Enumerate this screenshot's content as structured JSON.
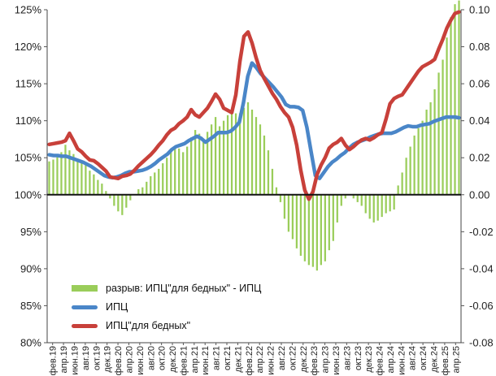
{
  "chart_data": {
    "type": "bar+line",
    "title": "",
    "left_axis": {
      "ticks": [
        "80%",
        "85%",
        "90%",
        "95%",
        "100%",
        "105%",
        "110%",
        "115%",
        "120%",
        "125%"
      ],
      "values": [
        80,
        85,
        90,
        95,
        100,
        105,
        110,
        115,
        120,
        125
      ],
      "ylim": [
        80,
        125
      ]
    },
    "right_axis": {
      "ticks": [
        "-0.08",
        "-0.06",
        "-0.04",
        "-0.02",
        "0.00",
        "0.02",
        "0.04",
        "0.06",
        "0.08",
        "0.10"
      ],
      "values": [
        -0.08,
        -0.06,
        -0.04,
        -0.02,
        0,
        0.02,
        0.04,
        0.06,
        0.08,
        0.1
      ],
      "ylim": [
        -0.08,
        0.1
      ]
    },
    "x_labels": [
      "фев.19",
      "апр.19",
      "июн.19",
      "авг.19",
      "окт.19",
      "дек.19",
      "фев.20",
      "апр.20",
      "июн.20",
      "авг.20",
      "окт.20",
      "дек.20",
      "фев.21",
      "апр.21",
      "июн.21",
      "авг.21",
      "окт.21",
      "дек.21",
      "фев.22",
      "апр.22",
      "июн.22",
      "авг.22",
      "окт.22",
      "дек.22",
      "фев.23",
      "апр.23",
      "июн.23",
      "авг.23",
      "окт.23",
      "дек.23",
      "фев.24",
      "апр.24",
      "июн.24",
      "авг.24",
      "окт.24",
      "дек.24",
      "фев.25",
      "апр.25"
    ],
    "series": [
      {
        "name": "разрыв: ИПЦ\"для бедных\" - ИПЦ",
        "type": "bar",
        "axis": "right",
        "color": "#9acd5a",
        "values": [
          0.018,
          0.019,
          0.021,
          0.023,
          0.027,
          0.024,
          0.022,
          0.019,
          0.018,
          0.016,
          0.013,
          0.011,
          0.008,
          0.006,
          0.002,
          -0.002,
          -0.006,
          -0.009,
          -0.011,
          -0.007,
          -0.003,
          0,
          0.003,
          0.004,
          0.007,
          0.01,
          0.012,
          0.014,
          0.017,
          0.02,
          0.024,
          0.026,
          0.025,
          0.023,
          0.026,
          0.031,
          0.035,
          0.033,
          0.03,
          0.034,
          0.038,
          0.042,
          0.037,
          0.04,
          0.043,
          0.045,
          0.044,
          0.044,
          0.047,
          0.05,
          0.046,
          0.042,
          0.038,
          0.032,
          0.024,
          0.014,
          0.004,
          -0.004,
          -0.013,
          -0.02,
          -0.024,
          -0.029,
          -0.033,
          -0.036,
          -0.038,
          -0.039,
          -0.041,
          -0.038,
          -0.036,
          -0.03,
          -0.025,
          -0.015,
          -0.006,
          -0.002,
          0,
          -0.002,
          -0.004,
          -0.006,
          -0.01,
          -0.013,
          -0.015,
          -0.014,
          -0.012,
          -0.01,
          -0.009,
          -0.008,
          0.005,
          0.012,
          0.02,
          0.026,
          0.032,
          0.036,
          0.04,
          0.046,
          0.05,
          0.057,
          0.066,
          0.073,
          0.085,
          0.096,
          0.103,
          0.105
        ]
      },
      {
        "name": "ИПЦ",
        "type": "line",
        "axis": "left",
        "color": "#4a86c8",
        "values": [
          105.4,
          105.3,
          105.3,
          105.2,
          105.2,
          105.0,
          104.8,
          104.6,
          104.4,
          104.1,
          103.8,
          103.4,
          103.0,
          102.6,
          102.4,
          102.3,
          102.4,
          102.6,
          102.9,
          103.1,
          103.1,
          103.2,
          103.3,
          103.5,
          103.8,
          104.2,
          104.7,
          105.1,
          105.5,
          106.1,
          106.5,
          106.7,
          106.9,
          107.3,
          107.6,
          107.9,
          107.6,
          107.1,
          107.5,
          107.9,
          108.4,
          108.4,
          108.4,
          108.6,
          109.1,
          109.8,
          112.5,
          116.0,
          117.8,
          117.2,
          116.4,
          115.8,
          115.2,
          114.6,
          113.9,
          113.2,
          112.2,
          111.9,
          111.9,
          111.8,
          111.4,
          109.1,
          105.8,
          102.6,
          102.2,
          103.0,
          103.8,
          104.4,
          104.8,
          105.3,
          105.7,
          106.3,
          106.8,
          107.1,
          107.3,
          107.5,
          107.8,
          108.0,
          108.2,
          108.3,
          108.3,
          108.3,
          108.5,
          108.8,
          109.1,
          109.3,
          109.2,
          109.2,
          109.4,
          109.5,
          109.6,
          109.9,
          110.1,
          110.3,
          110.5,
          110.5,
          110.5,
          110.4
        ]
      },
      {
        "name": "ИПЦ\"для бедных\"",
        "type": "line",
        "axis": "left",
        "color": "#c8403a",
        "values": [
          106.8,
          106.9,
          107.0,
          107.1,
          107.3,
          108.3,
          107.3,
          106.2,
          105.8,
          105.2,
          104.7,
          104.6,
          104.2,
          103.7,
          103.2,
          102.4,
          102.3,
          102.2,
          102.5,
          102.6,
          102.8,
          103.3,
          103.9,
          104.4,
          104.9,
          105.4,
          106.0,
          106.7,
          107.3,
          108.1,
          108.7,
          109.0,
          109.6,
          110.0,
          110.5,
          111.5,
          110.8,
          110.5,
          111.1,
          111.7,
          112.6,
          113.6,
          112.9,
          111.7,
          111.4,
          111.1,
          113.5,
          118.0,
          121.4,
          122.0,
          120.5,
          118.5,
          116.8,
          115.7,
          114.7,
          113.7,
          112.9,
          111.9,
          111.1,
          110.5,
          109.1,
          106.7,
          103.3,
          100.6,
          99.4,
          100.4,
          102.7,
          104.0,
          105.0,
          106.3,
          106.8,
          107.1,
          107.6,
          106.7,
          106.1,
          106.5,
          107.0,
          107.4,
          107.6,
          107.4,
          107.7,
          108.1,
          108.4,
          110.2,
          112.3,
          113.0,
          113.3,
          113.5,
          114.3,
          115.1,
          115.9,
          116.7,
          117.3,
          117.6,
          117.9,
          118.3,
          119.7,
          121.0,
          122.5,
          123.6,
          124.5,
          124.7
        ]
      }
    ],
    "legend": [
      "разрыв: ИПЦ\"для бедных\" - ИПЦ",
      "ИПЦ",
      "ИПЦ\"для бедных\""
    ],
    "legend_position": "bottom-left"
  },
  "legend_labels": {
    "gap": "разрыв: ИПЦ\"для бедных\" - ИПЦ",
    "cpi": "ИПЦ",
    "poor_cpi": "ИПЦ\"для бедных\""
  },
  "colors": {
    "bar": "#9acd5a",
    "cpi": "#4a86c8",
    "poor": "#c8403a"
  }
}
